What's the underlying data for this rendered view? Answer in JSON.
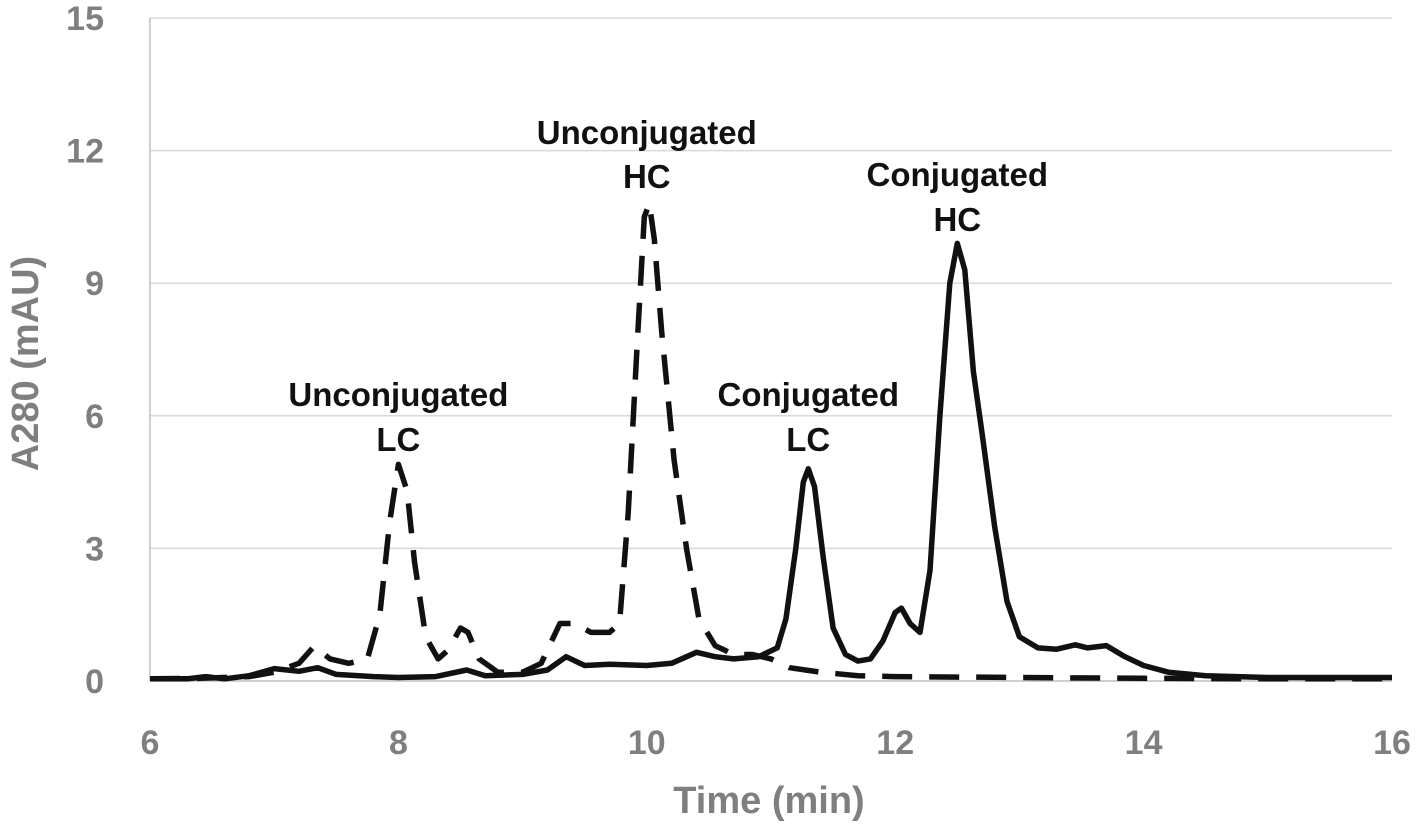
{
  "chart_data": {
    "type": "line",
    "title": "",
    "xlabel": "Time (min)",
    "ylabel": "A280 (mAU)",
    "xlim": [
      6,
      16
    ],
    "ylim": [
      0,
      15
    ],
    "xticks": [
      6,
      8,
      10,
      12,
      14,
      16
    ],
    "yticks": [
      0,
      3,
      6,
      9,
      12,
      15
    ],
    "grid": {
      "horizontal": true,
      "vertical": false
    },
    "legend": "none",
    "series": [
      {
        "style": "dashed",
        "color": "#111111",
        "points": [
          [
            6.0,
            0.05
          ],
          [
            6.4,
            0.06
          ],
          [
            6.8,
            0.1
          ],
          [
            7.0,
            0.2
          ],
          [
            7.2,
            0.4
          ],
          [
            7.32,
            0.78
          ],
          [
            7.45,
            0.5
          ],
          [
            7.6,
            0.4
          ],
          [
            7.75,
            0.5
          ],
          [
            7.85,
            1.5
          ],
          [
            7.93,
            3.6
          ],
          [
            8.0,
            4.9
          ],
          [
            8.07,
            4.3
          ],
          [
            8.13,
            2.7
          ],
          [
            8.22,
            1.0
          ],
          [
            8.32,
            0.5
          ],
          [
            8.4,
            0.7
          ],
          [
            8.5,
            1.2
          ],
          [
            8.56,
            1.1
          ],
          [
            8.65,
            0.5
          ],
          [
            8.8,
            0.2
          ],
          [
            9.0,
            0.2
          ],
          [
            9.15,
            0.4
          ],
          [
            9.3,
            1.3
          ],
          [
            9.42,
            1.3
          ],
          [
            9.55,
            1.1
          ],
          [
            9.7,
            1.1
          ],
          [
            9.78,
            1.3
          ],
          [
            9.85,
            3.8
          ],
          [
            9.92,
            7.5
          ],
          [
            9.98,
            10.5
          ],
          [
            10.02,
            10.8
          ],
          [
            10.06,
            10.0
          ],
          [
            10.12,
            7.9
          ],
          [
            10.22,
            5.0
          ],
          [
            10.32,
            3.0
          ],
          [
            10.42,
            1.4
          ],
          [
            10.55,
            0.8
          ],
          [
            10.7,
            0.6
          ],
          [
            10.85,
            0.6
          ],
          [
            11.0,
            0.5
          ],
          [
            11.15,
            0.3
          ],
          [
            11.4,
            0.2
          ],
          [
            11.7,
            0.12
          ],
          [
            12.0,
            0.1
          ],
          [
            13.0,
            0.08
          ],
          [
            14.0,
            0.06
          ],
          [
            15.0,
            0.05
          ],
          [
            16.0,
            0.05
          ]
        ]
      },
      {
        "style": "solid",
        "color": "#111111",
        "points": [
          [
            6.0,
            0.05
          ],
          [
            6.3,
            0.05
          ],
          [
            6.45,
            0.1
          ],
          [
            6.6,
            0.05
          ],
          [
            6.8,
            0.12
          ],
          [
            7.0,
            0.28
          ],
          [
            7.2,
            0.22
          ],
          [
            7.35,
            0.3
          ],
          [
            7.5,
            0.15
          ],
          [
            7.8,
            0.1
          ],
          [
            8.0,
            0.08
          ],
          [
            8.3,
            0.1
          ],
          [
            8.55,
            0.25
          ],
          [
            8.7,
            0.12
          ],
          [
            9.0,
            0.15
          ],
          [
            9.2,
            0.25
          ],
          [
            9.35,
            0.55
          ],
          [
            9.5,
            0.35
          ],
          [
            9.7,
            0.38
          ],
          [
            10.0,
            0.35
          ],
          [
            10.2,
            0.4
          ],
          [
            10.4,
            0.65
          ],
          [
            10.55,
            0.55
          ],
          [
            10.7,
            0.5
          ],
          [
            10.9,
            0.55
          ],
          [
            11.05,
            0.75
          ],
          [
            11.12,
            1.4
          ],
          [
            11.2,
            3.0
          ],
          [
            11.26,
            4.5
          ],
          [
            11.3,
            4.8
          ],
          [
            11.35,
            4.4
          ],
          [
            11.42,
            2.8
          ],
          [
            11.5,
            1.2
          ],
          [
            11.6,
            0.6
          ],
          [
            11.7,
            0.45
          ],
          [
            11.8,
            0.5
          ],
          [
            11.9,
            0.9
          ],
          [
            12.0,
            1.55
          ],
          [
            12.05,
            1.65
          ],
          [
            12.12,
            1.3
          ],
          [
            12.2,
            1.1
          ],
          [
            12.28,
            2.5
          ],
          [
            12.36,
            6.0
          ],
          [
            12.44,
            9.0
          ],
          [
            12.5,
            9.9
          ],
          [
            12.56,
            9.3
          ],
          [
            12.63,
            7.0
          ],
          [
            12.7,
            5.6
          ],
          [
            12.8,
            3.5
          ],
          [
            12.9,
            1.8
          ],
          [
            13.0,
            1.0
          ],
          [
            13.15,
            0.75
          ],
          [
            13.3,
            0.72
          ],
          [
            13.45,
            0.82
          ],
          [
            13.55,
            0.75
          ],
          [
            13.7,
            0.8
          ],
          [
            13.85,
            0.55
          ],
          [
            14.0,
            0.35
          ],
          [
            14.2,
            0.2
          ],
          [
            14.5,
            0.12
          ],
          [
            15.0,
            0.08
          ],
          [
            16.0,
            0.08
          ]
        ]
      }
    ],
    "annotations": [
      {
        "lines": [
          "Unconjugated",
          "LC"
        ],
        "x": 8.0
      },
      {
        "lines": [
          "Unconjugated",
          "HC"
        ],
        "x": 10.0
      },
      {
        "lines": [
          "Conjugated",
          "LC"
        ],
        "x": 11.3
      },
      {
        "lines": [
          "Conjugated",
          "HC"
        ],
        "x": 12.5
      }
    ]
  }
}
